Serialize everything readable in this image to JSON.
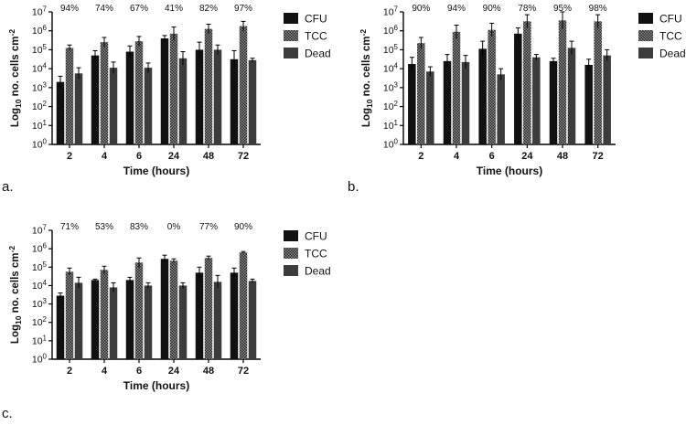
{
  "colors": {
    "cfu": "#111111",
    "tcc": "#5b5b5b",
    "dead": "#3c3c3c",
    "axis": "#000000"
  },
  "chart_data": [
    {
      "panel": "a.",
      "type": "bar",
      "yscale": "log10",
      "ylim": [
        0,
        7
      ],
      "ytick_labels": [
        {
          "base": "10",
          "exp": "0"
        },
        {
          "base": "10",
          "exp": "1"
        },
        {
          "base": "10",
          "exp": "2"
        },
        {
          "base": "10",
          "exp": "3"
        },
        {
          "base": "10",
          "exp": "4"
        },
        {
          "base": "10",
          "exp": "5"
        },
        {
          "base": "10",
          "exp": "6"
        },
        {
          "base": "10",
          "exp": "7"
        }
      ],
      "ylabel": {
        "pre": "Log",
        "sub": "10",
        "mid": " no. cells cm",
        "sup": "-2"
      },
      "xlabel": "Time (hours)",
      "categories": [
        "2",
        "4",
        "6",
        "24",
        "48",
        "72"
      ],
      "annotations": [
        "94%",
        "74%",
        "67%",
        "41%",
        "82%",
        "97%"
      ],
      "series": [
        {
          "name": "CFU",
          "values": [
            3.3,
            4.7,
            4.9,
            5.6,
            5.0,
            4.5
          ],
          "errors": [
            0.3,
            0.25,
            0.3,
            0.15,
            0.4,
            0.45
          ]
        },
        {
          "name": "TCC",
          "values": [
            5.1,
            5.4,
            5.45,
            5.85,
            6.1,
            6.25
          ],
          "errors": [
            0.15,
            0.25,
            0.25,
            0.35,
            0.25,
            0.25
          ]
        },
        {
          "name": "Dead",
          "values": [
            3.75,
            4.05,
            4.05,
            4.55,
            5.0,
            4.45
          ],
          "errors": [
            0.3,
            0.3,
            0.25,
            0.35,
            0.25,
            0.1
          ]
        }
      ]
    },
    {
      "panel": "b.",
      "type": "bar",
      "yscale": "log10",
      "ylim": [
        0,
        7
      ],
      "ytick_labels": [
        {
          "base": "10",
          "exp": "0"
        },
        {
          "base": "10",
          "exp": "1"
        },
        {
          "base": "10",
          "exp": "2"
        },
        {
          "base": "10",
          "exp": "3"
        },
        {
          "base": "10",
          "exp": "4"
        },
        {
          "base": "10",
          "exp": "5"
        },
        {
          "base": "10",
          "exp": "6"
        },
        {
          "base": "10",
          "exp": "7"
        }
      ],
      "ylabel": {
        "pre": "Log",
        "sub": "10",
        "mid": " no. cells cm",
        "sup": "-2"
      },
      "xlabel": "Time (hours)",
      "categories": [
        "2",
        "4",
        "6",
        "24",
        "48",
        "72"
      ],
      "annotations": [
        "90%",
        "94%",
        "90%",
        "78%",
        "95%",
        "98%"
      ],
      "series": [
        {
          "name": "CFU",
          "values": [
            4.25,
            4.4,
            5.05,
            5.85,
            4.4,
            4.2
          ],
          "errors": [
            0.35,
            0.35,
            0.4,
            0.3,
            0.15,
            0.3
          ]
        },
        {
          "name": "TCC",
          "values": [
            5.35,
            5.95,
            6.05,
            6.5,
            6.55,
            6.5
          ],
          "errors": [
            0.3,
            0.35,
            0.35,
            0.35,
            0.45,
            0.35
          ]
        },
        {
          "name": "Dead",
          "values": [
            3.85,
            4.35,
            3.7,
            4.6,
            5.1,
            4.7
          ],
          "errors": [
            0.25,
            0.35,
            0.3,
            0.15,
            0.35,
            0.3
          ]
        }
      ]
    },
    {
      "panel": "c.",
      "type": "bar",
      "yscale": "log10",
      "ylim": [
        0,
        7
      ],
      "ytick_labels": [
        {
          "base": "10",
          "exp": "0"
        },
        {
          "base": "10",
          "exp": "1"
        },
        {
          "base": "10",
          "exp": "2"
        },
        {
          "base": "10",
          "exp": "3"
        },
        {
          "base": "10",
          "exp": "4"
        },
        {
          "base": "10",
          "exp": "5"
        },
        {
          "base": "10",
          "exp": "6"
        },
        {
          "base": "10",
          "exp": "7"
        }
      ],
      "ylabel": {
        "pre": "Log",
        "sub": "10",
        "mid": " no. cells cm",
        "sup": "-2"
      },
      "xlabel": "Time (hours)",
      "categories": [
        "2",
        "4",
        "6",
        "24",
        "48",
        "72"
      ],
      "annotations": [
        "71%",
        "53%",
        "83%",
        "0%",
        "77%",
        "90%"
      ],
      "series": [
        {
          "name": "CFU",
          "values": [
            3.45,
            4.3,
            4.3,
            5.45,
            4.7,
            4.7
          ],
          "errors": [
            0.15,
            0.05,
            0.15,
            0.2,
            0.3,
            0.25
          ]
        },
        {
          "name": "TCC",
          "values": [
            4.75,
            4.85,
            5.25,
            5.35,
            5.5,
            5.8
          ],
          "errors": [
            0.2,
            0.2,
            0.25,
            0.1,
            0.1,
            0.05
          ]
        },
        {
          "name": "Dead",
          "values": [
            4.15,
            3.9,
            4.0,
            4.0,
            4.2,
            4.25
          ],
          "errors": [
            0.3,
            0.25,
            0.15,
            0.15,
            0.35,
            0.1
          ]
        }
      ]
    }
  ]
}
